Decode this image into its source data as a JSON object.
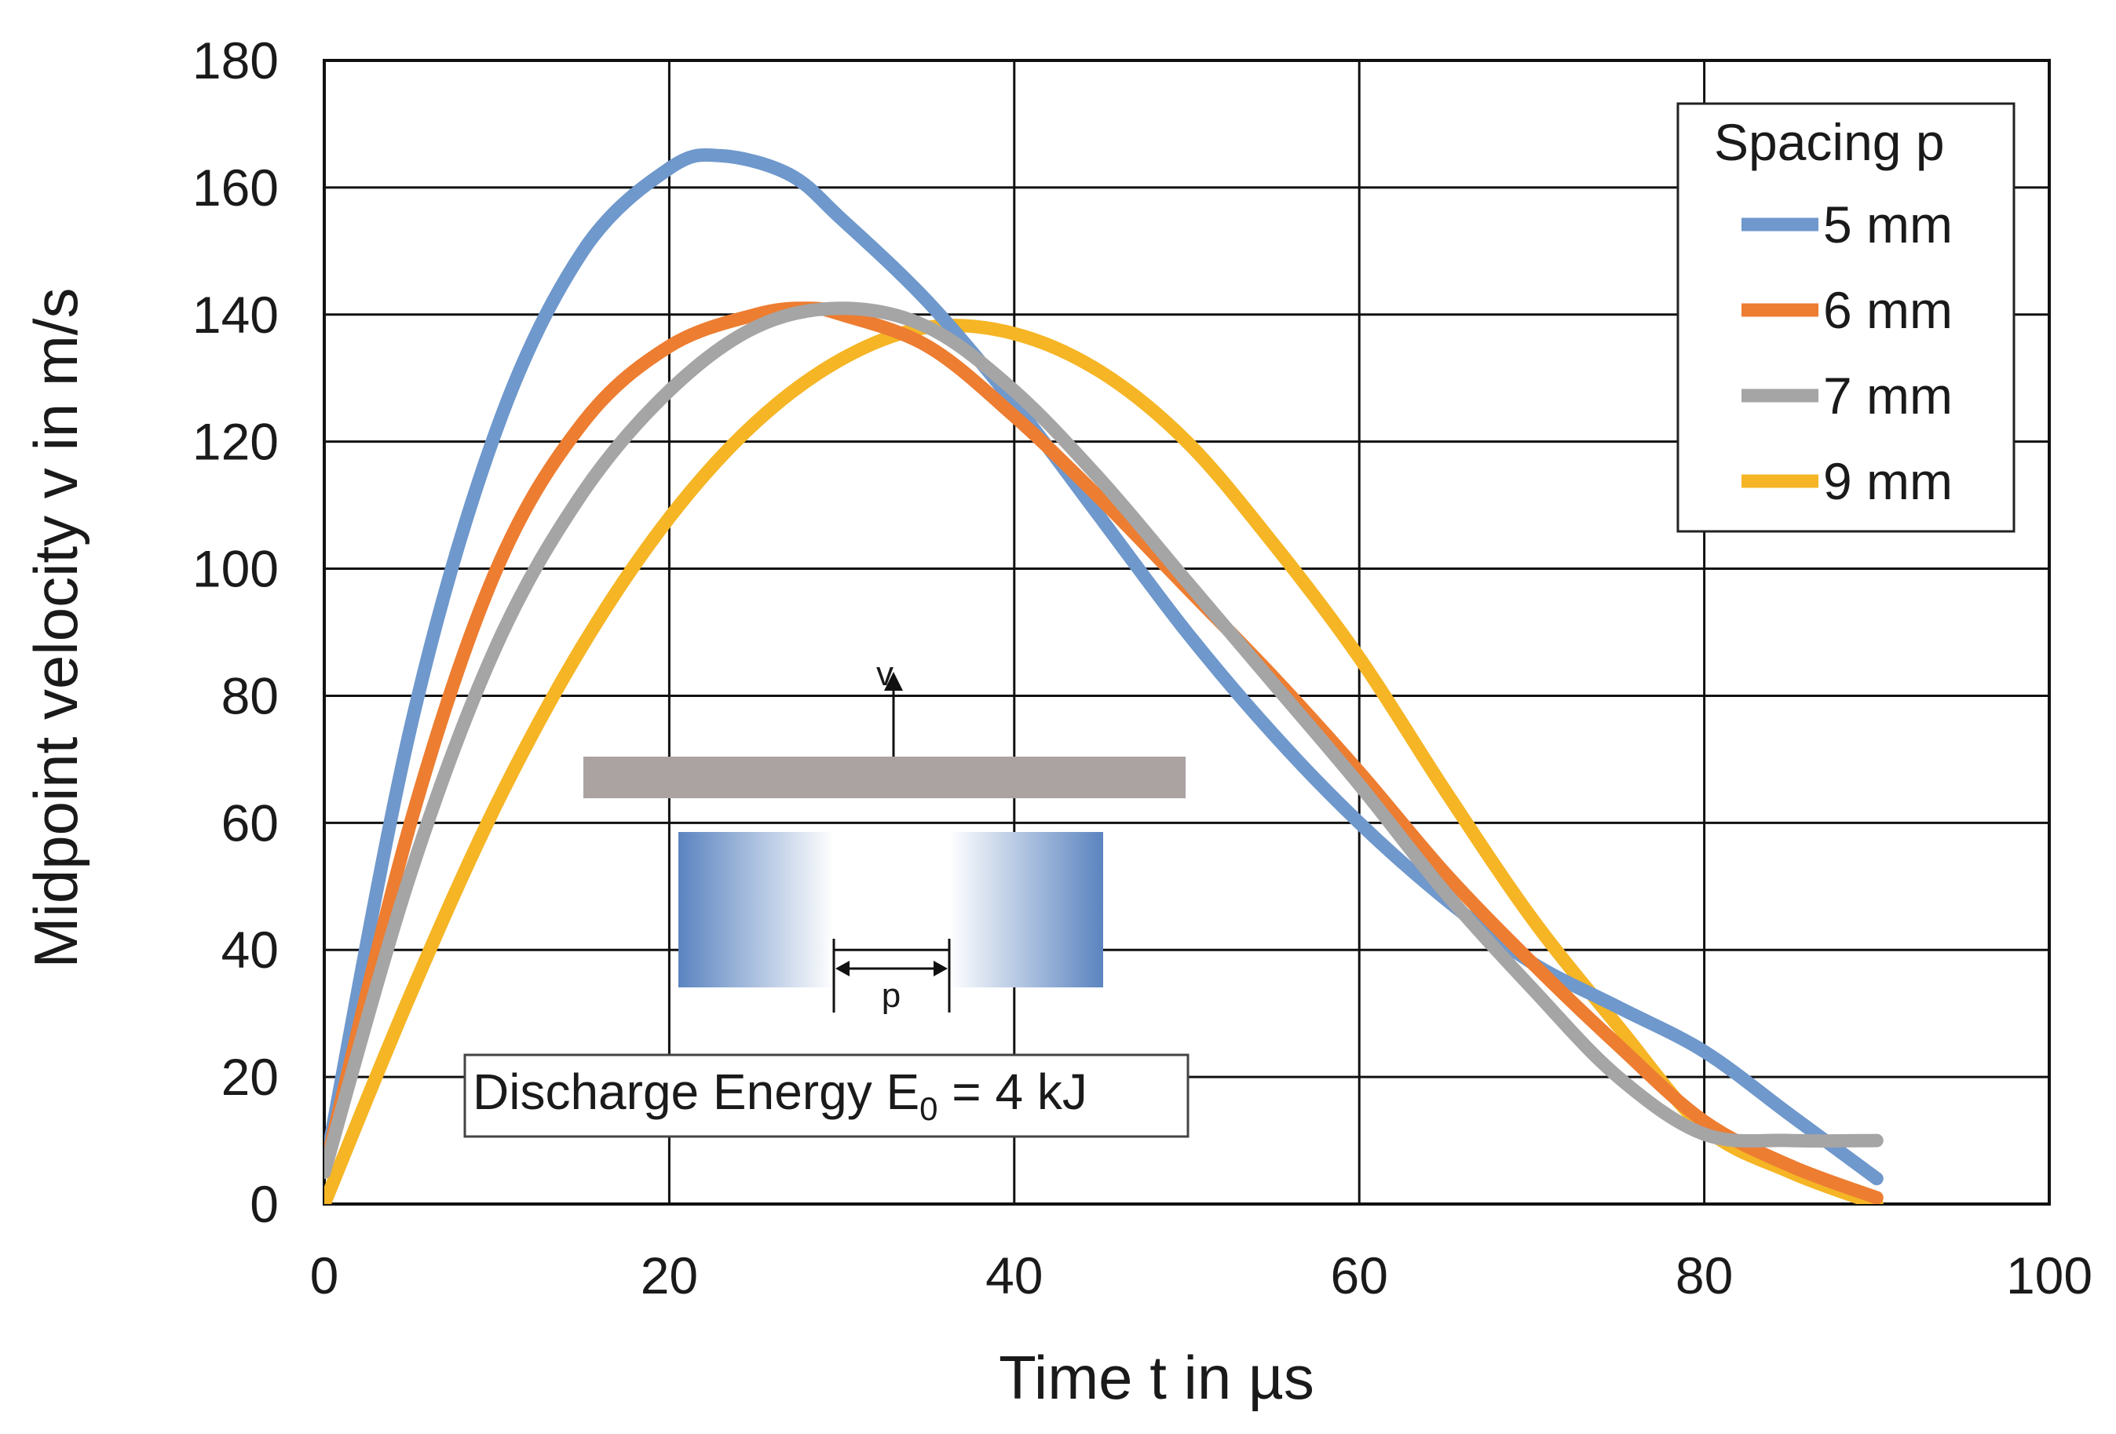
{
  "chart_data": {
    "type": "line",
    "title": "",
    "xlabel": "Time t in µs",
    "ylabel": "Midpoint velocity v in m/s",
    "xlim": [
      0,
      100
    ],
    "ylim": [
      0,
      180
    ],
    "xticks": [
      0,
      20,
      40,
      60,
      80,
      100
    ],
    "yticks": [
      0,
      20,
      40,
      60,
      80,
      100,
      120,
      140,
      160,
      180
    ],
    "grid": true,
    "legend": {
      "title": "Spacing p",
      "placement": "top-right"
    },
    "annotation": {
      "prefix": "Discharge Energy E",
      "subscript": "0",
      "suffix": " = 4 kJ"
    },
    "inset": {
      "velocity_label": "v",
      "spacing_label": "p"
    },
    "series": [
      {
        "name": "5 mm",
        "color": "#6f98cc",
        "x": [
          0,
          5,
          10,
          15,
          20,
          23,
          27,
          30,
          35,
          40,
          45,
          50,
          55,
          60,
          65,
          70,
          75,
          80,
          85,
          90
        ],
        "y": [
          5,
          75,
          122,
          150,
          163,
          165,
          162,
          155,
          142,
          126,
          108,
          90,
          74,
          60,
          48,
          38,
          31,
          24,
          14,
          4
        ]
      },
      {
        "name": "6 mm",
        "color": "#ed7d31",
        "x": [
          0,
          5,
          10,
          15,
          20,
          25,
          28,
          30,
          35,
          40,
          45,
          50,
          55,
          60,
          65,
          70,
          75,
          80,
          85,
          90
        ],
        "y": [
          5,
          60,
          100,
          123,
          135,
          140,
          141,
          140,
          135,
          124,
          111,
          97,
          83,
          68,
          52,
          38,
          25,
          13,
          6,
          1
        ]
      },
      {
        "name": "7 mm",
        "color": "#a5a5a5",
        "x": [
          0,
          5,
          10,
          15,
          20,
          25,
          30,
          35,
          40,
          45,
          50,
          55,
          60,
          65,
          70,
          75,
          80,
          85,
          90
        ],
        "y": [
          5,
          52,
          88,
          112,
          128,
          138,
          141,
          138,
          128,
          114,
          98,
          82,
          66,
          49,
          34,
          20,
          11,
          10,
          10
        ]
      },
      {
        "name": "9 mm",
        "color": "#f5b525",
        "x": [
          0,
          5,
          10,
          15,
          20,
          25,
          30,
          35,
          40,
          45,
          50,
          55,
          60,
          65,
          70,
          75,
          80,
          85,
          90
        ],
        "y": [
          0,
          33,
          63,
          88,
          108,
          123,
          133,
          138,
          137,
          131,
          120,
          104,
          86,
          65,
          45,
          28,
          12,
          5,
          0
        ]
      }
    ]
  }
}
